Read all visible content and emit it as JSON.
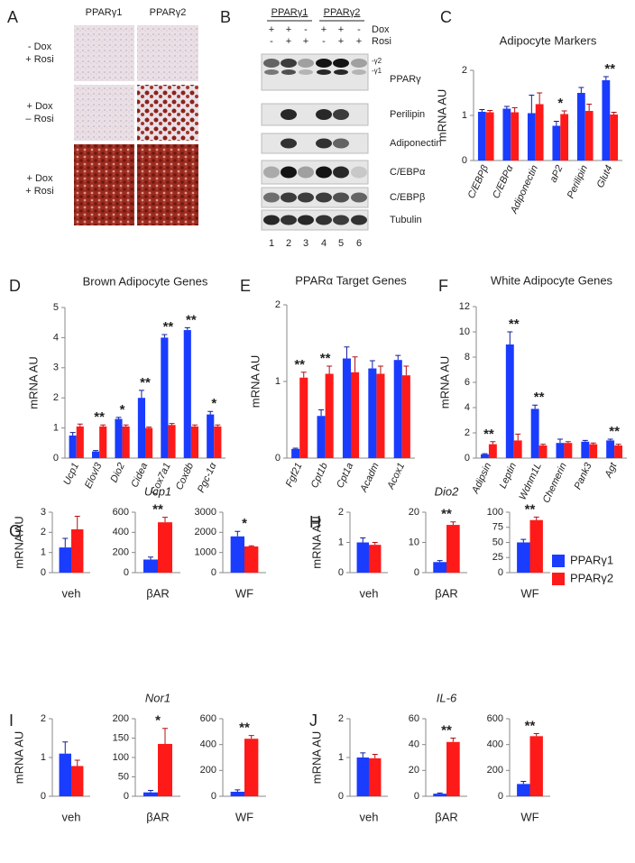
{
  "panel_a": {
    "label": "A",
    "columns": [
      "PPARγ1",
      "PPARγ2"
    ],
    "rows": [
      [
        "- Dox",
        "+ Rosi"
      ],
      [
        "+ Dox",
        "– Rosi"
      ],
      [
        "+ Dox",
        "+ Rosi"
      ]
    ]
  },
  "panel_b": {
    "label": "B",
    "groups": [
      "PPARγ1",
      "PPARγ2"
    ],
    "conditions": [
      "Dox",
      "Rosi"
    ],
    "dox": [
      "+",
      "+",
      "-",
      "+",
      "+",
      "-"
    ],
    "rosi": [
      "-",
      "+",
      "+",
      "-",
      "+",
      "+"
    ],
    "isoforms": [
      "-γ2",
      "-γ1"
    ],
    "proteins": [
      "PPARγ",
      "Perilipin",
      "Adiponectin",
      "C/EBPα",
      "C/EBPβ",
      "Tubulin"
    ],
    "lanes": [
      1,
      2,
      3,
      4,
      5,
      6
    ]
  },
  "legend": [
    {
      "name": "PPARγ1",
      "color": "#1a3cff"
    },
    {
      "name": "PPARγ2",
      "color": "#ff1a1a"
    }
  ],
  "chart_data": [
    {
      "type": "bar",
      "panel": "C",
      "title": "Adipocyte Markers",
      "ylabel": "mRNA AU",
      "categories": [
        "C/EBPβ",
        "C/EBPα",
        "Adiponectin",
        "aP2",
        "Perilipin",
        "Glut4"
      ],
      "series": [
        {
          "color": "#1a3cff",
          "values": [
            1.08,
            1.15,
            1.05,
            0.77,
            1.5,
            1.78
          ],
          "errors": [
            0.05,
            0.05,
            0.4,
            0.1,
            0.12,
            0.08
          ]
        },
        {
          "color": "#ff1a1a",
          "values": [
            1.07,
            1.07,
            1.25,
            1.03,
            1.1,
            1.02
          ],
          "errors": [
            0.04,
            0.1,
            0.25,
            0.07,
            0.15,
            0.05
          ]
        }
      ],
      "significance": [
        null,
        null,
        null,
        "*",
        null,
        "**"
      ],
      "ylim": [
        0,
        2
      ],
      "yticks": [
        0,
        1,
        2
      ]
    },
    {
      "type": "bar",
      "panel": "D",
      "title": "Brown Adipocyte Genes",
      "ylabel": "mRNA AU",
      "categories": [
        "Ucp1",
        "Elovl3",
        "Dio2",
        "Cidea",
        "Cox7a1",
        "Cox8b",
        "Pgc-1α"
      ],
      "series": [
        {
          "color": "#1a3cff",
          "values": [
            0.75,
            0.22,
            1.3,
            2.0,
            4.0,
            4.25,
            1.45
          ],
          "errors": [
            0.1,
            0.03,
            0.05,
            0.25,
            0.1,
            0.08,
            0.1
          ]
        },
        {
          "color": "#ff1a1a",
          "values": [
            1.05,
            1.05,
            1.05,
            1.0,
            1.1,
            1.05,
            1.05
          ],
          "errors": [
            0.08,
            0.05,
            0.05,
            0.03,
            0.05,
            0.05,
            0.05
          ]
        }
      ],
      "significance": [
        null,
        "**",
        "*",
        "**",
        "**",
        "**",
        "*"
      ],
      "ylim": [
        0,
        5
      ],
      "yticks": [
        0,
        1,
        2,
        3,
        4,
        5
      ]
    },
    {
      "type": "bar",
      "panel": "E",
      "title": "PPARα Target Genes",
      "ylabel": "mRNA AU",
      "categories": [
        "Fgf21",
        "Cpt1b",
        "Cpt1a",
        "Acadm",
        "Acox1"
      ],
      "series": [
        {
          "color": "#1a3cff",
          "values": [
            0.12,
            0.55,
            1.3,
            1.17,
            1.28
          ],
          "errors": [
            0.01,
            0.08,
            0.15,
            0.1,
            0.06
          ]
        },
        {
          "color": "#ff1a1a",
          "values": [
            1.05,
            1.1,
            1.12,
            1.1,
            1.08
          ],
          "errors": [
            0.07,
            0.1,
            0.2,
            0.1,
            0.12
          ]
        }
      ],
      "significance": [
        "**",
        "**",
        null,
        null,
        null
      ],
      "ylim": [
        0,
        2
      ],
      "yticks": [
        0,
        1,
        2
      ]
    },
    {
      "type": "bar",
      "panel": "F",
      "title": "White Adipocyte Genes",
      "ylabel": "mRNA AU",
      "categories": [
        "Adipsin",
        "Leptin",
        "Wdnm1L",
        "Chemerin",
        "Pank3",
        "Agt"
      ],
      "series": [
        {
          "color": "#1a3cff",
          "values": [
            0.3,
            9.0,
            3.9,
            1.2,
            1.3,
            1.4
          ],
          "errors": [
            0.05,
            1.0,
            0.3,
            0.3,
            0.1,
            0.1
          ]
        },
        {
          "color": "#ff1a1a",
          "values": [
            1.1,
            1.4,
            1.0,
            1.2,
            1.1,
            1.0
          ],
          "errors": [
            0.2,
            0.5,
            0.1,
            0.1,
            0.1,
            0.1
          ]
        }
      ],
      "significance": [
        "**",
        "**",
        "**",
        null,
        null,
        "**"
      ],
      "ylim": [
        0,
        12
      ],
      "yticks": [
        0,
        2,
        4,
        6,
        8,
        10,
        12
      ]
    },
    {
      "type": "bar",
      "panel": "G",
      "ylabel": "mRNA AU",
      "categories": [
        "veh"
      ],
      "series": [
        {
          "color": "#1a3cff",
          "values": [
            1.25
          ],
          "errors": [
            0.45
          ]
        },
        {
          "color": "#ff1a1a",
          "values": [
            2.15
          ],
          "errors": [
            0.65
          ]
        }
      ],
      "significance": [
        null
      ],
      "ylim": [
        0,
        3
      ],
      "yticks": [
        0,
        1,
        2,
        3
      ]
    },
    {
      "type": "bar",
      "title": "Ucp1",
      "categories": [
        "βAR"
      ],
      "series": [
        {
          "color": "#1a3cff",
          "values": [
            130
          ],
          "errors": [
            25
          ]
        },
        {
          "color": "#ff1a1a",
          "values": [
            500
          ],
          "errors": [
            50
          ]
        }
      ],
      "significance": [
        "**"
      ],
      "ylim": [
        0,
        600
      ],
      "yticks": [
        0,
        200,
        400,
        600
      ]
    },
    {
      "type": "bar",
      "categories": [
        "WF"
      ],
      "series": [
        {
          "color": "#1a3cff",
          "values": [
            1800
          ],
          "errors": [
            250
          ]
        },
        {
          "color": "#ff1a1a",
          "values": [
            1300
          ],
          "errors": [
            30
          ]
        }
      ],
      "significance": [
        "*"
      ],
      "ylim": [
        0,
        3000
      ],
      "yticks": [
        0,
        1000,
        2000,
        3000
      ]
    },
    {
      "type": "bar",
      "panel": "H",
      "ylabel": "mRNA AU",
      "categories": [
        "veh"
      ],
      "series": [
        {
          "color": "#1a3cff",
          "values": [
            1.0
          ],
          "errors": [
            0.15
          ]
        },
        {
          "color": "#ff1a1a",
          "values": [
            0.92
          ],
          "errors": [
            0.08
          ]
        }
      ],
      "significance": [
        null
      ],
      "ylim": [
        0,
        2
      ],
      "yticks": [
        0,
        1,
        2
      ]
    },
    {
      "type": "bar",
      "title": "Dio2",
      "categories": [
        "βAR"
      ],
      "series": [
        {
          "color": "#1a3cff",
          "values": [
            3.5
          ],
          "errors": [
            0.5
          ]
        },
        {
          "color": "#ff1a1a",
          "values": [
            15.8
          ],
          "errors": [
            1
          ]
        }
      ],
      "significance": [
        "**"
      ],
      "ylim": [
        0,
        20
      ],
      "yticks": [
        0,
        10,
        20
      ]
    },
    {
      "type": "bar",
      "categories": [
        "WF"
      ],
      "series": [
        {
          "color": "#1a3cff",
          "values": [
            50
          ],
          "errors": [
            5
          ]
        },
        {
          "color": "#ff1a1a",
          "values": [
            87
          ],
          "errors": [
            5
          ]
        }
      ],
      "significance": [
        "**"
      ],
      "ylim": [
        0,
        100
      ],
      "yticks": [
        0,
        25,
        50,
        75,
        100
      ]
    },
    {
      "type": "bar",
      "panel": "I",
      "ylabel": "mRNA AU",
      "categories": [
        "veh"
      ],
      "series": [
        {
          "color": "#1a3cff",
          "values": [
            1.1
          ],
          "errors": [
            0.3
          ]
        },
        {
          "color": "#ff1a1a",
          "values": [
            0.78
          ],
          "errors": [
            0.15
          ]
        }
      ],
      "significance": [
        null
      ],
      "ylim": [
        0,
        2
      ],
      "yticks": [
        0,
        1,
        2
      ]
    },
    {
      "type": "bar",
      "title": "Nor1",
      "categories": [
        "βAR"
      ],
      "series": [
        {
          "color": "#1a3cff",
          "values": [
            10
          ],
          "errors": [
            5
          ]
        },
        {
          "color": "#ff1a1a",
          "values": [
            135
          ],
          "errors": [
            40
          ]
        }
      ],
      "significance": [
        "*"
      ],
      "ylim": [
        0,
        200
      ],
      "yticks": [
        0,
        50,
        100,
        150,
        200
      ]
    },
    {
      "type": "bar",
      "categories": [
        "WF"
      ],
      "series": [
        {
          "color": "#1a3cff",
          "values": [
            35
          ],
          "errors": [
            15
          ]
        },
        {
          "color": "#ff1a1a",
          "values": [
            445
          ],
          "errors": [
            25
          ]
        }
      ],
      "significance": [
        "**"
      ],
      "ylim": [
        0,
        600
      ],
      "yticks": [
        0,
        200,
        400,
        600
      ]
    },
    {
      "type": "bar",
      "panel": "J",
      "ylabel": "mRNA AU",
      "categories": [
        "veh"
      ],
      "series": [
        {
          "color": "#1a3cff",
          "values": [
            1.0
          ],
          "errors": [
            0.12
          ]
        },
        {
          "color": "#ff1a1a",
          "values": [
            0.98
          ],
          "errors": [
            0.1
          ]
        }
      ],
      "significance": [
        null
      ],
      "ylim": [
        0,
        2
      ],
      "yticks": [
        0,
        1,
        2
      ]
    },
    {
      "type": "bar",
      "title": "IL-6",
      "categories": [
        "βAR"
      ],
      "series": [
        {
          "color": "#1a3cff",
          "values": [
            2
          ],
          "errors": [
            0.5
          ]
        },
        {
          "color": "#ff1a1a",
          "values": [
            42
          ],
          "errors": [
            3
          ]
        }
      ],
      "significance": [
        "**"
      ],
      "ylim": [
        0,
        60
      ],
      "yticks": [
        0,
        20,
        40,
        60
      ]
    },
    {
      "type": "bar",
      "categories": [
        "WF"
      ],
      "series": [
        {
          "color": "#1a3cff",
          "values": [
            95
          ],
          "errors": [
            20
          ]
        },
        {
          "color": "#ff1a1a",
          "values": [
            465
          ],
          "errors": [
            20
          ]
        }
      ],
      "significance": [
        "**"
      ],
      "ylim": [
        0,
        600
      ],
      "yticks": [
        0,
        200,
        400,
        600
      ]
    }
  ]
}
